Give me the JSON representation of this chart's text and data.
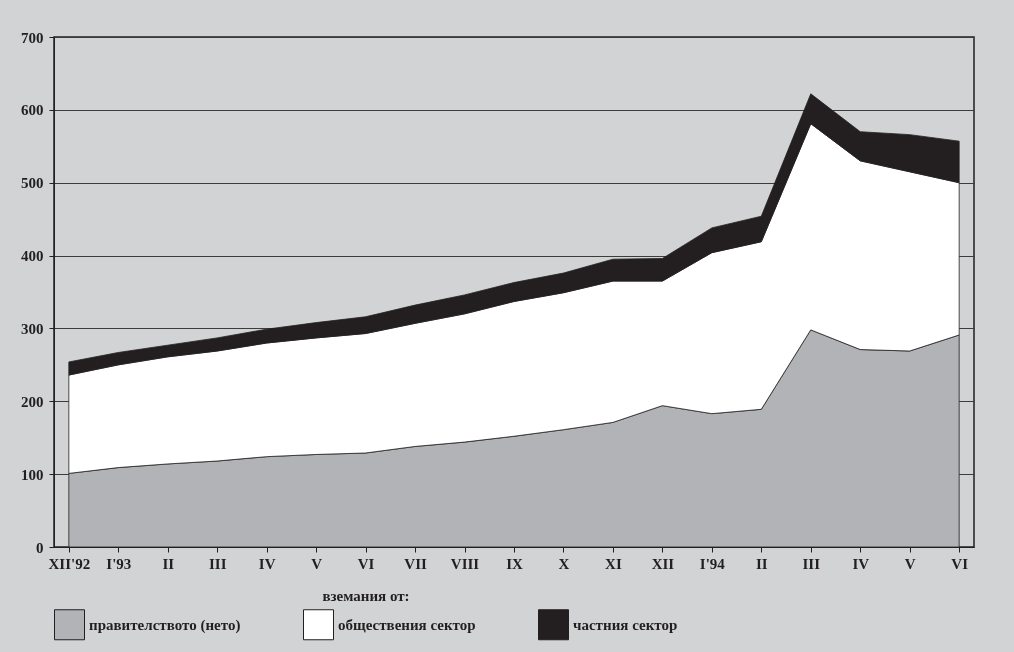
{
  "chart_data": {
    "type": "area",
    "stacked": true,
    "legend_title": "вземания от:",
    "legend": "bottom",
    "grid": "y",
    "categories": [
      "XII'92",
      "I'93",
      "II",
      "III",
      "IV",
      "V",
      "VI",
      "VII",
      "VIII",
      "IX",
      "X",
      "XI",
      "XII",
      "I'94",
      "II",
      "III",
      "IV",
      "V",
      "VI"
    ],
    "ylim": [
      0,
      700
    ],
    "yticks": [
      0,
      100,
      200,
      300,
      400,
      500,
      600,
      700
    ],
    "series": [
      {
        "name": "правителството (нето)",
        "color": "#b1b3b6",
        "values": [
          101,
          109,
          114,
          118,
          124,
          127,
          129,
          138,
          144,
          152,
          161,
          171,
          194,
          183,
          189,
          298,
          271,
          269,
          291
        ]
      },
      {
        "name": "обществения сектор",
        "color": "#ffffff",
        "values": [
          135,
          141,
          147,
          151,
          156,
          160,
          164,
          169,
          176,
          185,
          188,
          194,
          171,
          221,
          230,
          283,
          259,
          246,
          209
        ]
      },
      {
        "name": "частния сектор",
        "color": "#231f20",
        "values": [
          18,
          17,
          16,
          18,
          19,
          21,
          23,
          25,
          26,
          26,
          27,
          30,
          31,
          34,
          35,
          41,
          40,
          51,
          57
        ]
      }
    ]
  }
}
